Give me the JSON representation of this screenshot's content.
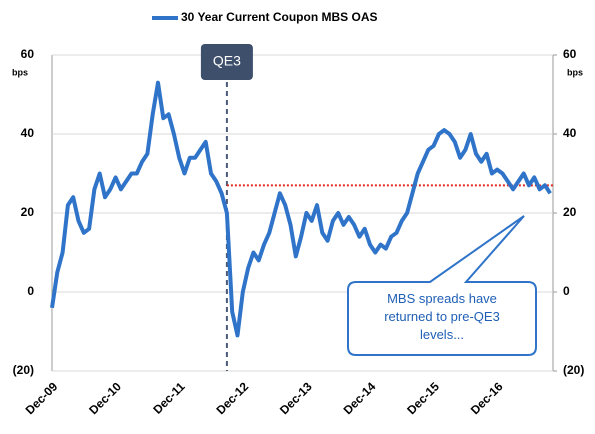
{
  "chart_data": {
    "type": "line",
    "title": "30 Year Current Coupon MBS OAS",
    "y_unit": "bps",
    "categories": [
      "Dec-09",
      null,
      null,
      null,
      null,
      null,
      null,
      null,
      null,
      null,
      null,
      null,
      "Dec-10",
      null,
      null,
      null,
      null,
      null,
      null,
      null,
      null,
      null,
      null,
      null,
      "Dec-11",
      null,
      null,
      null,
      null,
      null,
      null,
      null,
      null,
      null,
      null,
      null,
      "Dec-12",
      null,
      null,
      null,
      null,
      null,
      null,
      null,
      null,
      null,
      null,
      null,
      "Dec-13",
      null,
      null,
      null,
      null,
      null,
      null,
      null,
      null,
      null,
      null,
      null,
      "Dec-14",
      null,
      null,
      null,
      null,
      null,
      null,
      null,
      null,
      null,
      null,
      null,
      "Dec-15",
      null,
      null,
      null,
      null,
      null,
      null,
      null,
      null,
      null,
      null,
      null,
      "Dec-16",
      null,
      null,
      null,
      null,
      null,
      null,
      null,
      null,
      null,
      null
    ],
    "series": [
      {
        "name": "30 Year Current Coupon MBS OAS",
        "color": "#2f74c9",
        "values": [
          -4,
          5,
          10,
          22,
          24,
          18,
          15,
          16,
          26,
          30,
          24,
          26,
          29,
          26,
          28,
          30,
          30,
          33,
          35,
          45,
          53,
          44,
          45,
          40,
          34,
          30,
          34,
          34,
          36,
          38,
          30,
          28,
          25,
          20,
          -5,
          -11,
          0,
          6,
          10,
          8,
          12,
          15,
          20,
          25,
          22,
          17,
          9,
          14,
          20,
          18,
          22,
          15,
          13,
          18,
          20,
          17,
          19,
          17,
          14,
          16,
          12,
          10,
          12,
          11,
          14,
          15,
          18,
          20,
          25,
          30,
          33,
          36,
          37,
          40,
          41,
          40,
          38,
          34,
          36,
          40,
          35,
          33,
          35,
          30,
          31,
          30,
          28,
          26,
          28,
          30,
          27,
          29,
          26,
          27,
          25
        ]
      }
    ],
    "ylim": [
      -20,
      60
    ],
    "yticks": [
      {
        "value": -20,
        "label": "(20)"
      },
      0,
      20,
      40,
      60
    ],
    "y2lim": [
      -20,
      60
    ],
    "y2ticks": [
      {
        "value": -20,
        "label": "(20)"
      },
      0,
      20,
      40,
      60
    ],
    "grid": true,
    "annotations": {
      "event": {
        "text": "QE3",
        "x_index": 33
      },
      "reference_line": {
        "y": 27,
        "color": "#e0281e"
      },
      "callout": {
        "text_lines": [
          "MBS spreads have",
          "returned to pre-QE3",
          "levels..."
        ]
      }
    }
  }
}
